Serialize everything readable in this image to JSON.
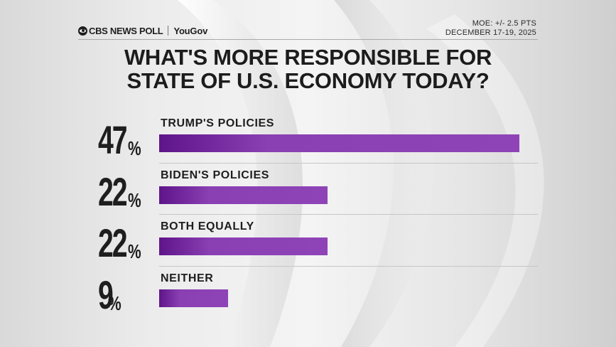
{
  "header": {
    "brand": "CBS NEWS POLL",
    "partner": "YouGov",
    "moe": "MOE: +/- 2.5 PTS",
    "dates": "DECEMBER 17-19, 2025"
  },
  "colors": {
    "bar": "#8e44b6",
    "bar_dark": "#5e1589",
    "text": "#1e1e1e"
  },
  "chart_data": {
    "type": "bar",
    "orientation": "horizontal",
    "title": "WHAT'S MORE RESPONSIBLE FOR STATE OF U.S. ECONOMY TODAY?",
    "title_lines": [
      "WHAT'S MORE RESPONSIBLE FOR",
      "STATE OF U.S. ECONOMY TODAY?"
    ],
    "categories": [
      "TRUMP'S POLICIES",
      "BIDEN'S POLICIES",
      "BOTH EQUALLY",
      "NEITHER"
    ],
    "values": [
      47,
      22,
      22,
      9
    ],
    "value_labels": [
      "47",
      "22",
      "22",
      "9"
    ],
    "unit": "%",
    "xlim": [
      0,
      47
    ],
    "xlabel": "",
    "ylabel": ""
  }
}
